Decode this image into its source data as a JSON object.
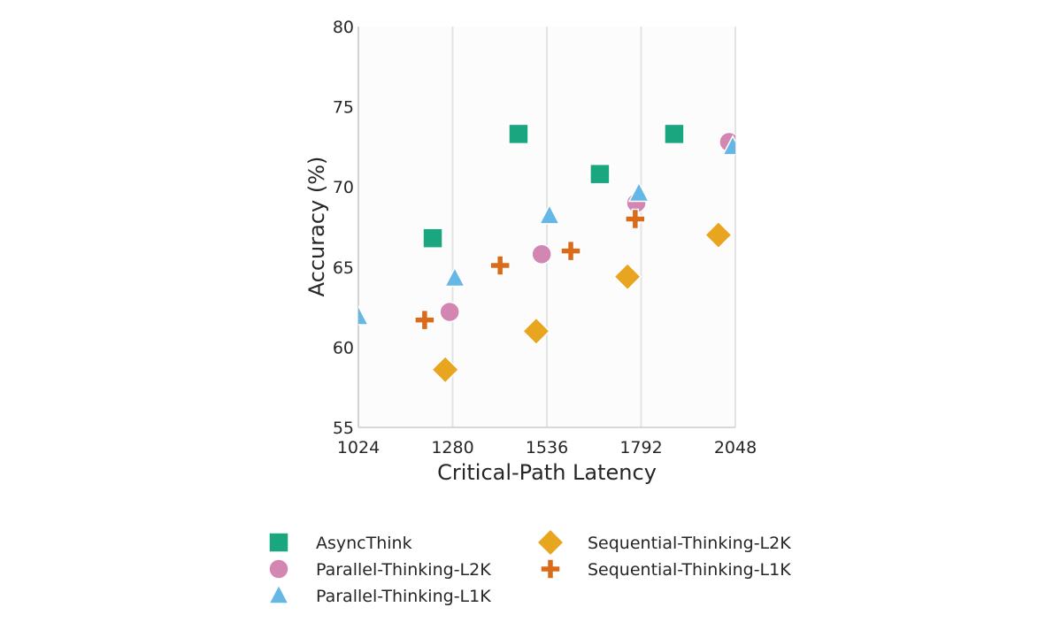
{
  "chart_data": {
    "type": "scatter",
    "xlabel": "Critical-Path Latency",
    "ylabel": "Accuracy (%)",
    "xlim": [
      1024,
      2048
    ],
    "ylim": [
      55,
      80
    ],
    "xticks": [
      1024,
      1280,
      1536,
      1792,
      2048
    ],
    "yticks": [
      55,
      60,
      65,
      70,
      75,
      80
    ],
    "grid": "vertical",
    "legend_position": "bottom",
    "series": [
      {
        "name": "AsyncThink",
        "marker": "square",
        "color": "#1aa67f",
        "x": [
          1226,
          1459,
          1680,
          1882
        ],
        "y": [
          66.8,
          73.3,
          70.8,
          73.3
        ]
      },
      {
        "name": "Parallel-Thinking-L2K",
        "marker": "circle",
        "color": "#d386b1",
        "x": [
          1272,
          1522,
          1779,
          2031
        ],
        "y": [
          62.2,
          65.8,
          69.0,
          72.8
        ]
      },
      {
        "name": "Parallel-Thinking-L1K",
        "marker": "triangle",
        "color": "#65b8e6",
        "x": [
          1024,
          1286,
          1543,
          1786,
          2041
        ],
        "y": [
          61.9,
          64.3,
          68.2,
          69.6,
          72.5
        ]
      },
      {
        "name": "Sequential-Thinking-L2K",
        "marker": "diamond",
        "color": "#e8a51f",
        "x": [
          1260,
          1507,
          1755,
          2002
        ],
        "y": [
          58.6,
          61.0,
          64.4,
          67.0
        ]
      },
      {
        "name": "Sequential-Thinking-L1K",
        "marker": "plus",
        "color": "#d96b1b",
        "x": [
          1204,
          1409,
          1601,
          1776
        ],
        "y": [
          61.7,
          65.1,
          66.0,
          68.0
        ]
      }
    ]
  }
}
